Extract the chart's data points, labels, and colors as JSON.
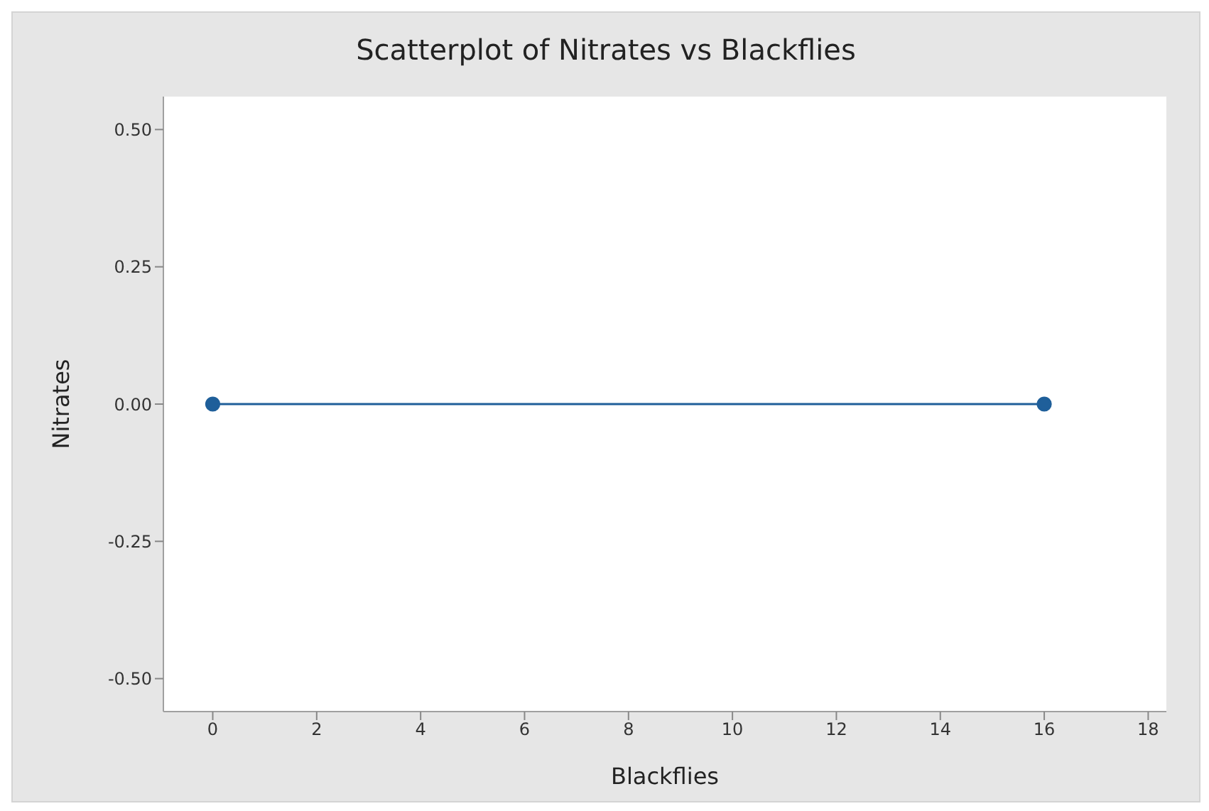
{
  "chart_data": {
    "type": "line",
    "title": "Scatterplot of Nitrates vs Blackflies",
    "xlabel": "Blackflies",
    "ylabel": "Nitrates",
    "x": [
      0,
      16
    ],
    "series": [
      {
        "color": "#1f5f9a",
        "values": [
          0,
          0
        ]
      }
    ],
    "marker": "circle",
    "line_style": "solid",
    "grid": false,
    "legend": false,
    "xlim": [
      -0.95,
      18.35
    ],
    "xticks": [
      0,
      2,
      4,
      6,
      8,
      10,
      12,
      14,
      16,
      18
    ],
    "ylim": [
      -0.56,
      0.56
    ],
    "yticks": [
      {
        "value": -0.5,
        "label": "-0.50"
      },
      {
        "value": -0.25,
        "label": "-0.25"
      },
      {
        "value": 0,
        "label": "0.00"
      },
      {
        "value": 0.25,
        "label": "0.25"
      },
      {
        "value": 0.5,
        "label": "0.50"
      }
    ]
  }
}
